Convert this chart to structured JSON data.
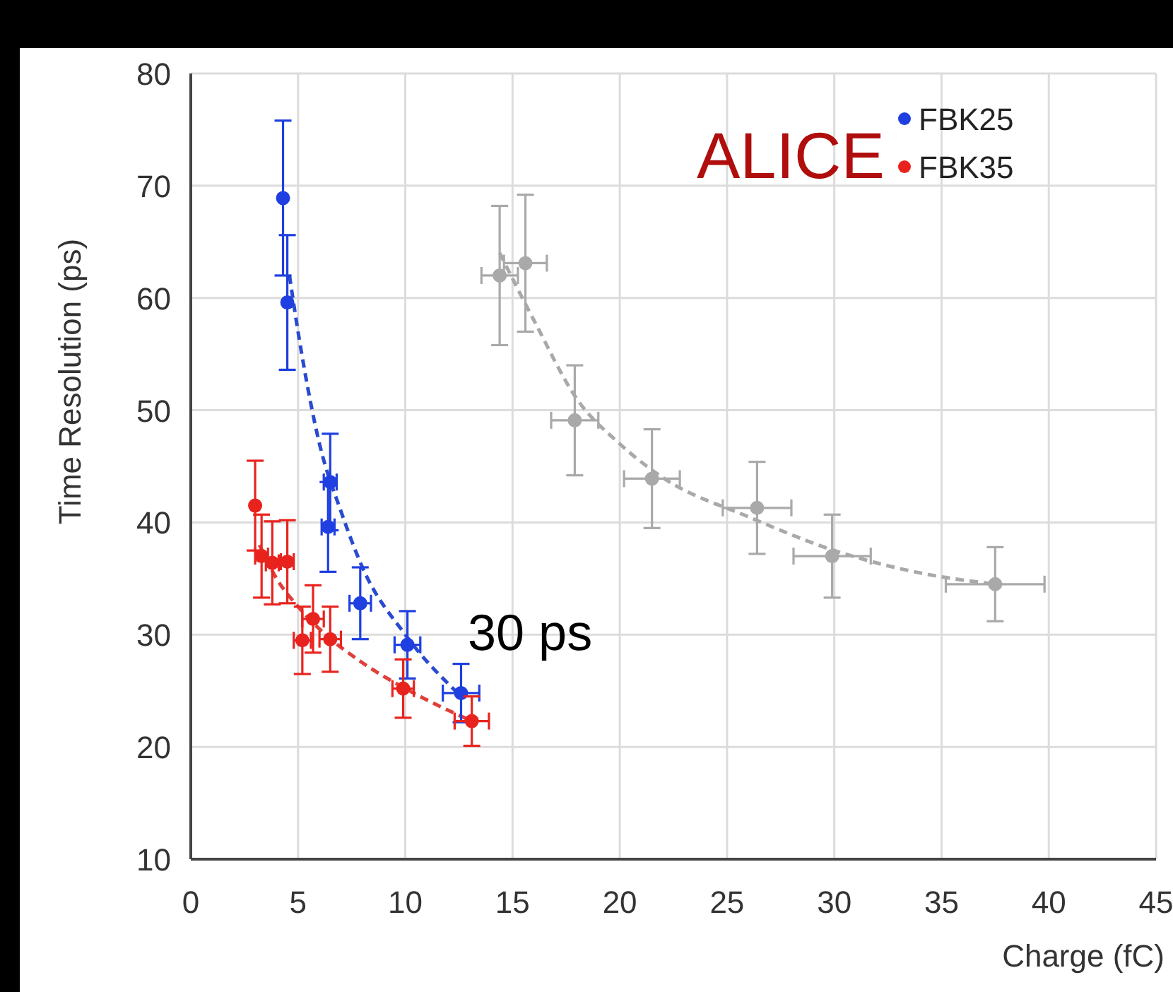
{
  "chart_data": {
    "type": "scatter",
    "xlabel": "Charge (fC)",
    "ylabel": "Time Resolution (ps)",
    "xlim": [
      0,
      45
    ],
    "xticks": [
      0,
      5,
      10,
      15,
      20,
      25,
      30,
      35,
      40,
      45
    ],
    "ylim": [
      10,
      80
    ],
    "yticks": [
      10,
      20,
      30,
      40,
      50,
      60,
      70,
      80
    ],
    "grid": true,
    "legend": "top right",
    "marker": "circle",
    "annotations": [
      "ALICE",
      "30 ps"
    ],
    "series": [
      {
        "name": "FBK25",
        "color": "#1f3fe0",
        "x": [
          4.3,
          4.5,
          6.5,
          6.4,
          7.9,
          10.1,
          12.6
        ],
        "values": [
          68.9,
          59.6,
          43.6,
          39.6,
          32.8,
          29.1,
          24.8
        ],
        "errors": [
          6.9,
          6,
          4.3,
          4,
          3.2,
          3,
          2.6
        ],
        "xerrors": [
          null,
          null,
          0.3,
          0.3,
          0.5,
          0.6,
          0.85
        ]
      },
      {
        "name": "FBK35",
        "color": "#e8231e",
        "x": [
          3.0,
          3.3,
          3.8,
          4.5,
          5.7,
          5.2,
          6.5,
          9.9,
          13.1
        ],
        "values": [
          41.5,
          37.0,
          36.4,
          36.5,
          31.4,
          29.5,
          29.6,
          25.2,
          22.3
        ],
        "errors": [
          4,
          3.7,
          3.7,
          3.7,
          3,
          3,
          2.9,
          2.6,
          2.2
        ],
        "xerrors": [
          null,
          0.3,
          0.3,
          0.3,
          0.5,
          0.4,
          0.5,
          0.5,
          0.8
        ]
      },
      {
        "color": "#a9a9a9",
        "x": [
          14.4,
          15.6,
          17.9,
          21.5,
          26.4,
          29.9,
          37.5
        ],
        "values": [
          62.0,
          63.1,
          49.1,
          43.9,
          41.3,
          37.0,
          34.5
        ],
        "errors": [
          6.2,
          6.1,
          4.9,
          4.4,
          4.1,
          3.7,
          3.3
        ],
        "xerrors": [
          0.85,
          1,
          1.1,
          1.3,
          1.6,
          1.8,
          2.3
        ]
      },
      {
        "type": "line",
        "line_style": "dashed",
        "marker": "none",
        "color": "#2a4ad0",
        "x": [
          4.6,
          5,
          6,
          7,
          8,
          10,
          12.6
        ],
        "values": [
          62,
          57,
          47,
          41,
          36,
          30,
          24.5
        ]
      },
      {
        "type": "line",
        "line_style": "dashed",
        "marker": "none",
        "color": "#e0403a",
        "x": [
          3.2,
          4,
          5,
          6,
          8,
          10,
          13.1
        ],
        "values": [
          38,
          35,
          32.5,
          30.5,
          27.5,
          25.2,
          22.3
        ]
      },
      {
        "type": "line",
        "line_style": "dashed",
        "marker": "none",
        "color": "#a9a9a9",
        "x": [
          14.4,
          16,
          18,
          20,
          22,
          26,
          30,
          34,
          37.5
        ],
        "values": [
          64,
          58,
          51,
          47,
          44,
          40.5,
          37.5,
          35.5,
          34.5
        ]
      }
    ]
  }
}
